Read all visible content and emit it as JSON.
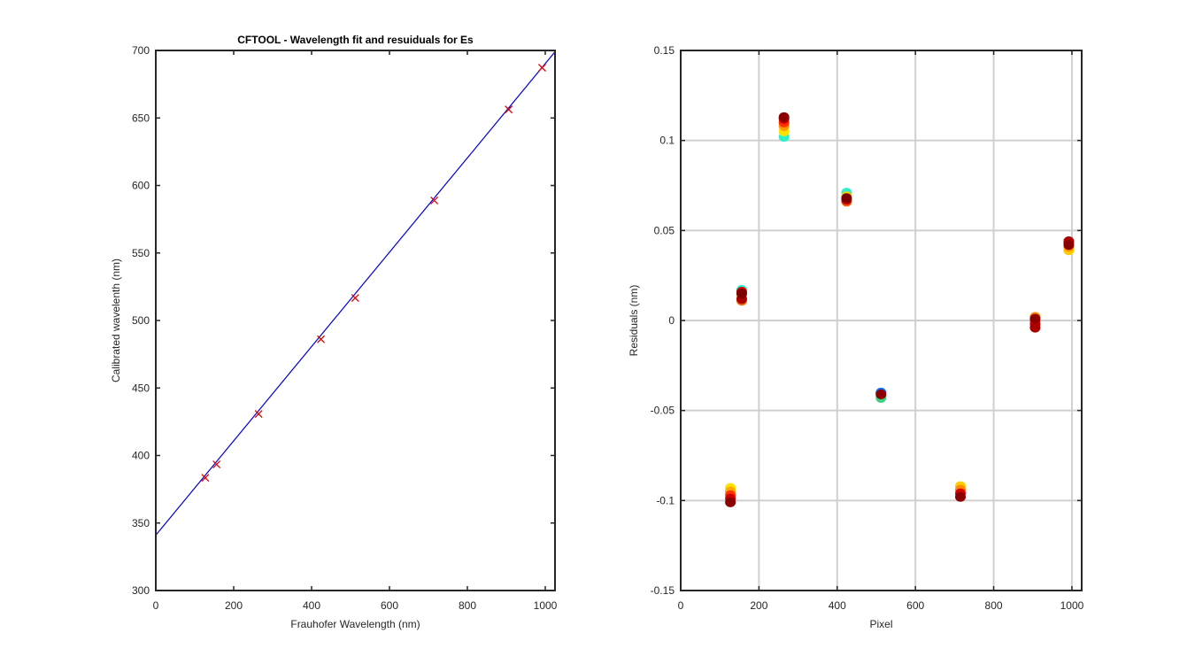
{
  "colors": {
    "fit_line": "#0000cc",
    "marker": "#dd0000",
    "axes": "#262626",
    "grid": "#d0d0d0"
  },
  "chart_data": [
    {
      "type": "line",
      "title": "CFTOOL - Wavelength fit and resuiduals for Es",
      "xlabel": "Frauhofer Wavelength (nm)",
      "ylabel": "Calibrated wavelenth (nm)",
      "xlim": [
        0,
        1025
      ],
      "ylim": [
        300,
        700
      ],
      "xticks": [
        0,
        200,
        400,
        600,
        800,
        1000
      ],
      "yticks": [
        300,
        350,
        400,
        450,
        500,
        550,
        600,
        650,
        700
      ],
      "grid": false,
      "fit_line": {
        "x": [
          0,
          1025
        ],
        "y": [
          341,
          699
        ]
      },
      "points": {
        "marker": "x",
        "x": [
          127,
          156,
          264,
          424,
          512,
          715,
          906,
          992
        ],
        "y": [
          383.5,
          393.4,
          430.8,
          486.1,
          516.7,
          588.9,
          656.3,
          687.2
        ]
      }
    },
    {
      "type": "scatter",
      "title": "",
      "xlabel": "Pixel",
      "ylabel": "Residuals  (nm)",
      "xlim": [
        0,
        1025
      ],
      "ylim": [
        -0.15,
        0.15
      ],
      "xticks": [
        0,
        200,
        400,
        600,
        800,
        1000
      ],
      "yticks": [
        -0.15,
        -0.1,
        -0.05,
        0,
        0.05,
        0.1,
        0.15
      ],
      "ytick_labels": [
        "-0.15",
        "-0.1",
        "-0.05",
        "0",
        "0.05",
        "0.1",
        "0.15"
      ],
      "grid": true,
      "series": [
        {
          "x": 127,
          "y": [
            -0.093,
            -0.095,
            -0.097,
            -0.099,
            -0.101
          ],
          "colors": [
            "#ffe000",
            "#ffaa00",
            "#ff3300",
            "#cc0000",
            "#8b0000"
          ]
        },
        {
          "x": 156,
          "y": [
            0.017,
            0.014,
            0.011,
            0.016,
            0.012,
            0.015
          ],
          "colors": [
            "#30f0c8",
            "#ffd000",
            "#ff6000",
            "#dd0000",
            "#aa0000",
            "#7a0000"
          ]
        },
        {
          "x": 264,
          "y": [
            0.102,
            0.105,
            0.108,
            0.11,
            0.112,
            0.113
          ],
          "colors": [
            "#30f0c8",
            "#ffe000",
            "#ff9900",
            "#ff3000",
            "#cc0000",
            "#8b0000"
          ]
        },
        {
          "x": 424,
          "y": [
            0.071,
            0.069,
            0.066,
            0.067,
            0.068
          ],
          "colors": [
            "#30f0c8",
            "#ffcc00",
            "#ff6000",
            "#cc0000",
            "#7a0000"
          ]
        },
        {
          "x": 512,
          "y": [
            -0.04,
            -0.042,
            -0.043,
            -0.041
          ],
          "colors": [
            "#1070ff",
            "#30f0c8",
            "#40d080",
            "#8b0000"
          ]
        },
        {
          "x": 715,
          "y": [
            -0.092,
            -0.094,
            -0.096,
            -0.098
          ],
          "colors": [
            "#ffcc00",
            "#ff8800",
            "#dd0000",
            "#8b0000"
          ]
        },
        {
          "x": 906,
          "y": [
            0.002,
            0.0,
            -0.002,
            -0.004,
            0.001
          ],
          "colors": [
            "#ff8800",
            "#ff2000",
            "#cc0000",
            "#aa0000",
            "#8b0000"
          ]
        },
        {
          "x": 992,
          "y": [
            0.039,
            0.041,
            0.043,
            0.044,
            0.042
          ],
          "colors": [
            "#ffcc00",
            "#ff8800",
            "#ee2000",
            "#aa0000",
            "#8b0000"
          ]
        }
      ]
    }
  ]
}
